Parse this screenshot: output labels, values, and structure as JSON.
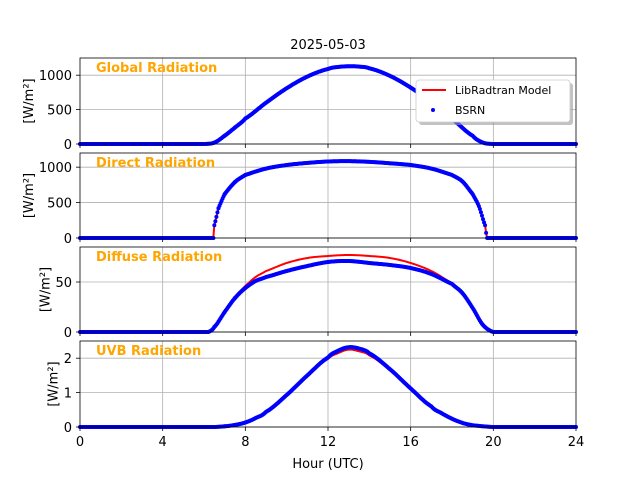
{
  "chart_data": {
    "type": "line",
    "title": "2025-05-03",
    "xlabel": "Hour (UTC)",
    "xlim": [
      0,
      24
    ],
    "xticks": [
      0,
      4,
      8,
      12,
      16,
      20,
      24
    ],
    "grid": true,
    "label_color": "#FFA500",
    "legend": {
      "placement": "top-right of first panel",
      "entries": [
        {
          "name": "LibRadtran Model",
          "color": "#FF0000",
          "style": "line"
        },
        {
          "name": "BSRN",
          "color": "#0000FF",
          "style": "dots"
        }
      ]
    },
    "panels": [
      {
        "label": "Global Radiation",
        "ylabel": "[W/m²]",
        "ylim": [
          0,
          1250
        ],
        "yticks": [
          0,
          500,
          1000
        ],
        "series": [
          {
            "name": "LibRadtran Model",
            "color": "#FF0000",
            "x": [
              0,
              6.0,
              6.5,
              7,
              7.5,
              8,
              9,
              10,
              11,
              12,
              12.5,
              13,
              13.5,
              14,
              15,
              16,
              17,
              18,
              19,
              19.5,
              20,
              24
            ],
            "y": [
              0,
              0,
              20,
              120,
              240,
              370,
              600,
              810,
              980,
              1090,
              1120,
              1130,
              1125,
              1100,
              990,
              820,
              610,
              370,
              120,
              20,
              0,
              0
            ]
          },
          {
            "name": "BSRN",
            "color": "#0000FF",
            "x": [
              0,
              6.0,
              6.5,
              7,
              7.5,
              8,
              9,
              10,
              11,
              12,
              12.5,
              13,
              13.5,
              14,
              15,
              16,
              17,
              18,
              19,
              19.5,
              20,
              24
            ],
            "y": [
              0,
              0,
              20,
              120,
              240,
              370,
              600,
              810,
              980,
              1090,
              1120,
              1130,
              1125,
              1100,
              990,
              820,
              610,
              370,
              120,
              20,
              0,
              0
            ]
          }
        ]
      },
      {
        "label": "Direct Radiation",
        "ylabel": "[W/m²]",
        "ylim": [
          0,
          1200
        ],
        "yticks": [
          0,
          500,
          1000
        ],
        "series": [
          {
            "name": "LibRadtran Model",
            "color": "#FF0000",
            "x": [
              0,
              6.45,
              6.5,
              6.7,
              7,
              7.5,
              8,
              9,
              10,
              11,
              12,
              13,
              14,
              15,
              16,
              17,
              18,
              18.5,
              19,
              19.3,
              19.6,
              19.7,
              24
            ],
            "y": [
              0,
              0,
              180,
              420,
              620,
              790,
              890,
              980,
              1030,
              1060,
              1080,
              1085,
              1075,
              1055,
              1030,
              980,
              890,
              800,
              620,
              450,
              180,
              0,
              0
            ]
          },
          {
            "name": "BSRN",
            "color": "#0000FF",
            "x": [
              0,
              6.45,
              6.5,
              6.7,
              7,
              7.5,
              8,
              9,
              10,
              11,
              12,
              13,
              14,
              15,
              16,
              17,
              18,
              18.5,
              19,
              19.3,
              19.6,
              19.7,
              24
            ],
            "y": [
              0,
              0,
              180,
              420,
              620,
              790,
              890,
              980,
              1030,
              1060,
              1080,
              1085,
              1075,
              1055,
              1030,
              980,
              890,
              800,
              620,
              450,
              180,
              0,
              0
            ]
          }
        ]
      },
      {
        "label": "Diffuse Radiation",
        "ylabel": "[W/m²]",
        "ylim": [
          0,
          85
        ],
        "yticks": [
          0,
          50
        ],
        "series": [
          {
            "name": "LibRadtran Model",
            "color": "#FF0000",
            "x": [
              0,
              6.2,
              6.5,
              7,
              7.5,
              8,
              8.5,
              9,
              10,
              11,
              12,
              13,
              14,
              15,
              16,
              17,
              18,
              18.5,
              19,
              19.5,
              20,
              24
            ],
            "y": [
              0,
              0,
              5,
              20,
              35,
              46,
              55,
              61,
              69,
              74,
              76,
              77,
              76,
              74,
              69,
              61,
              49,
              40,
              25,
              8,
              0,
              0
            ]
          },
          {
            "name": "BSRN",
            "color": "#0000FF",
            "x": [
              0,
              6.2,
              6.5,
              7,
              7.5,
              8,
              8.5,
              9,
              10,
              11,
              12,
              13,
              14,
              15,
              16,
              17,
              18,
              18.5,
              19,
              19.5,
              20,
              24
            ],
            "y": [
              0,
              0,
              5,
              20,
              34,
              44,
              51,
              55,
              61,
              66,
              70,
              71,
              69,
              67,
              64,
              58,
              48,
              39,
              24,
              7,
              0,
              0
            ]
          }
        ]
      },
      {
        "label": "UVB Radiation",
        "ylabel": "[W/m²]",
        "ylim": [
          0,
          2.5
        ],
        "yticks": [
          0,
          1,
          2
        ],
        "series": [
          {
            "name": "LibRadtran Model",
            "color": "#FF0000",
            "x": [
              0,
              6.5,
              7,
              7.5,
              8,
              8.5,
              9,
              10,
              11,
              12,
              12.5,
              13,
              13.5,
              14,
              15,
              16,
              17,
              17.5,
              18,
              18.5,
              19,
              20,
              24
            ],
            "y": [
              0,
              0,
              0.02,
              0.06,
              0.14,
              0.28,
              0.46,
              0.95,
              1.5,
              1.98,
              2.15,
              2.25,
              2.2,
              2.08,
              1.65,
              1.1,
              0.6,
              0.4,
              0.24,
              0.12,
              0.05,
              0,
              0
            ]
          },
          {
            "name": "BSRN",
            "color": "#0000FF",
            "x": [
              0,
              6.5,
              7,
              7.5,
              8,
              8.5,
              9,
              10,
              11,
              12,
              12.5,
              13,
              13.5,
              14,
              15,
              16,
              17,
              17.5,
              18,
              18.5,
              19,
              20,
              24
            ],
            "y": [
              0,
              0,
              0.02,
              0.06,
              0.13,
              0.26,
              0.44,
              0.93,
              1.5,
              2.02,
              2.22,
              2.32,
              2.28,
              2.14,
              1.68,
              1.12,
              0.6,
              0.4,
              0.24,
              0.12,
              0.05,
              0,
              0
            ]
          }
        ]
      }
    ]
  }
}
